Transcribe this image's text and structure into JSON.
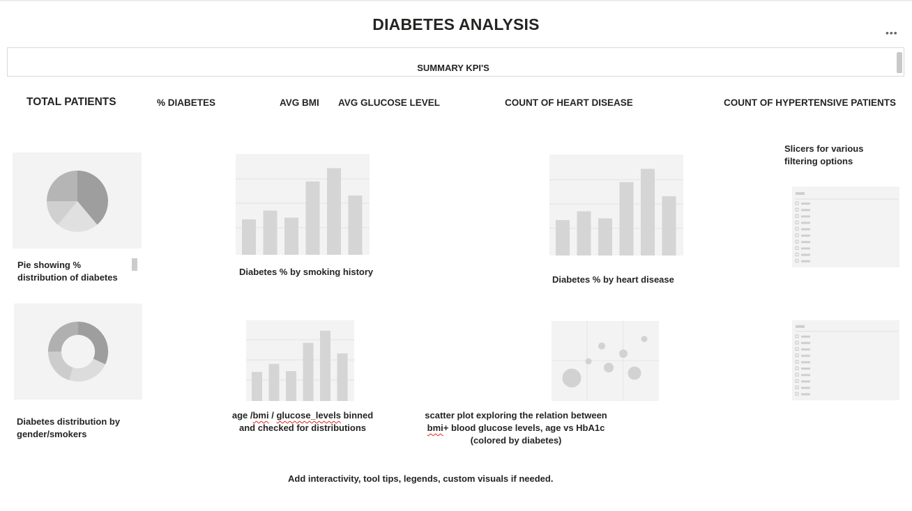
{
  "page": {
    "title": "DIABETES ANALYSIS",
    "more_label": "•••"
  },
  "summary": {
    "label": "SUMMARY KPI'S"
  },
  "kpis": [
    "TOTAL PATIENTS",
    "% DIABETES",
    "AVG BMI",
    "AVG GLUCOSE LEVEL",
    "COUNT OF HEART DISEASE",
    "COUNT OF HYPERTENSIVE PATIENTS"
  ],
  "captions": {
    "pie": [
      "Pie showing %",
      "distribution of diabetes"
    ],
    "smoking": "Diabetes % by smoking history",
    "heart": "Diabetes % by heart disease",
    "slicers": [
      "Slicers for various",
      "filtering options"
    ],
    "donut": [
      "Diabetes distribution by",
      "gender/smokers"
    ],
    "binned": {
      "line1_a": "age /",
      "line1_b": "bmi",
      "line1_c": " / ",
      "line1_d": "glucose_levels",
      "line1_e": " binned",
      "line2": "and checked for distributions"
    },
    "scatter": {
      "line1": "scatter plot exploring the relation between",
      "line2_a": "bmi",
      "line2_b": "+ blood glucose levels, age vs HbA1c",
      "line3": "(colored by diabetes)"
    },
    "footer": "Add interactivity, tool tips, legends, custom visuals if needed."
  },
  "placeholders": {
    "bar_a": [
      0.4,
      0.5,
      0.42,
      0.83,
      0.98,
      0.67
    ],
    "bar_b": [
      0.4,
      0.5,
      0.42,
      0.83,
      0.98,
      0.67
    ],
    "bar_c": [
      0.36,
      0.46,
      0.37,
      0.72,
      0.87,
      0.59
    ],
    "pie_shades": [
      "#9e9e9e",
      "#b5b5b5",
      "#d2d2d2",
      "#e0e0e0"
    ],
    "bar_color": "#d5d5d5",
    "tile_color": "#f3f3f3"
  }
}
